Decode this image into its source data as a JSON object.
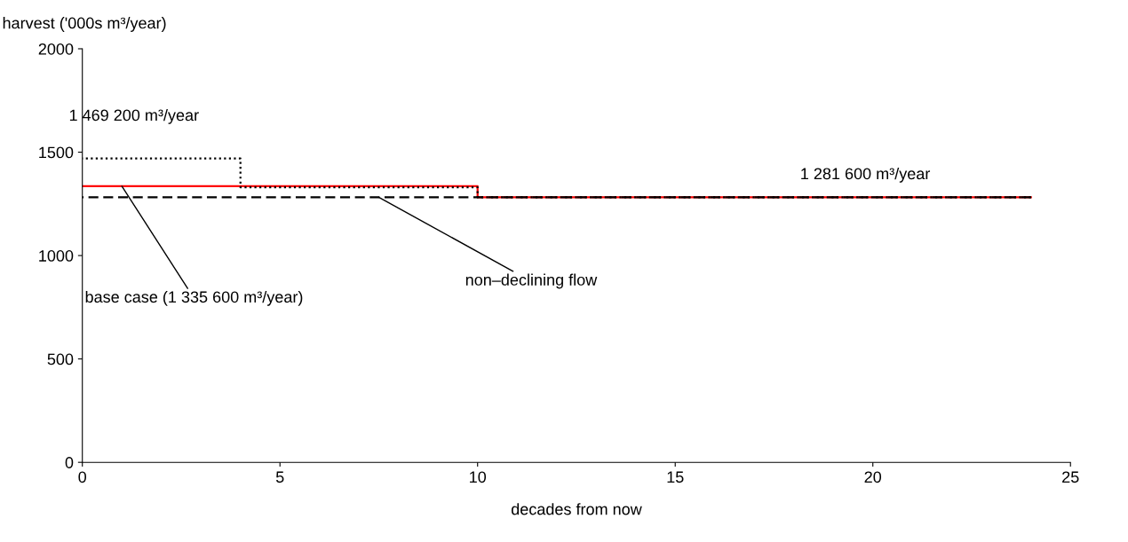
{
  "chart_data": {
    "type": "step",
    "xlabel": "decades from now",
    "ylabel": "harvest ('000s m³/year)",
    "series": [
      {
        "color": "#000000",
        "line_style": "dotted",
        "x": [
          0,
          4,
          10,
          24
        ],
        "values": [
          1469.2,
          1330,
          1281.6,
          1281.6
        ]
      },
      {
        "color": "#ff0000",
        "line_style": "solid",
        "x": [
          0,
          10,
          24
        ],
        "values": [
          1335.6,
          1281.6,
          1281.6
        ]
      },
      {
        "color": "#000000",
        "line_style": "dashed",
        "x": [
          0,
          24
        ],
        "values": [
          1281.6,
          1281.6
        ]
      }
    ],
    "annotations": [
      {
        "text": "1 469 200 m³/year",
        "x": 2,
        "y": 1469.2
      },
      {
        "text": "1 281 600 m³/year",
        "x": 20.5,
        "y": 1281.6
      },
      {
        "text": "base case (1 335 600 m³/year)",
        "x": 1,
        "y": 1335.6
      },
      {
        "text": "non–declining flow",
        "x": 7.5,
        "y": 1281.6
      }
    ],
    "xlim": [
      0,
      25
    ],
    "xticks": [
      0,
      5,
      10,
      15,
      20,
      25
    ],
    "ylim": [
      0,
      2000
    ],
    "yticks": [
      0,
      500,
      1000,
      1500,
      2000
    ],
    "grid": false,
    "legend": false
  }
}
